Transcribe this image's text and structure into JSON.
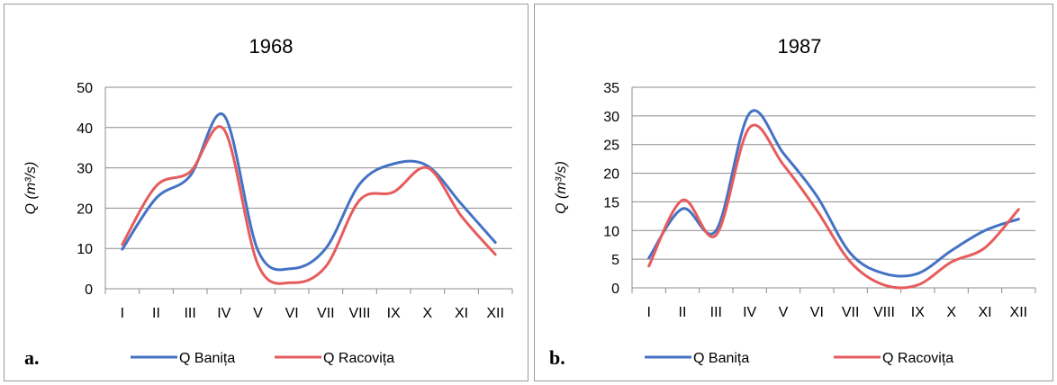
{
  "chart_data": [
    {
      "type": "line",
      "title": "1968",
      "panel_label": "a.",
      "ylabel": "Q (m³/s)",
      "xlabel": "",
      "categories": [
        "I",
        "II",
        "III",
        "IV",
        "V",
        "VI",
        "VII",
        "VIII",
        "IX",
        "X",
        "XI",
        "XII"
      ],
      "ylim": [
        0,
        50
      ],
      "yticks": [
        0,
        10,
        20,
        30,
        40,
        50
      ],
      "grid": true,
      "legend": "bottom",
      "series": [
        {
          "name": "Q Banița",
          "color": "#4472c4",
          "values": [
            9.8,
            22.5,
            28.0,
            43.0,
            9.5,
            5.0,
            10.0,
            26.0,
            31.0,
            30.5,
            21.0,
            11.5
          ]
        },
        {
          "name": "Q Racovița",
          "color": "#e65c5c",
          "values": [
            11.0,
            25.5,
            29.0,
            39.5,
            6.0,
            1.5,
            5.5,
            22.0,
            24.0,
            30.0,
            18.0,
            8.5
          ]
        }
      ]
    },
    {
      "type": "line",
      "title": "1987",
      "panel_label": "b.",
      "ylabel": "Q (m³/s)",
      "xlabel": "",
      "categories": [
        "I",
        "II",
        "III",
        "IV",
        "V",
        "VI",
        "VII",
        "VIII",
        "IX",
        "X",
        "XI",
        "XII"
      ],
      "ylim": [
        0,
        35
      ],
      "yticks": [
        0,
        5,
        10,
        15,
        20,
        25,
        30,
        35
      ],
      "grid": true,
      "legend": "bottom",
      "series": [
        {
          "name": "Q Banița",
          "color": "#4472c4",
          "values": [
            5.2,
            13.8,
            10.0,
            30.5,
            23.5,
            16.0,
            6.0,
            2.5,
            2.5,
            6.5,
            10.0,
            12.0
          ]
        },
        {
          "name": "Q Racovița",
          "color": "#e65c5c",
          "values": [
            3.8,
            15.3,
            9.2,
            28.0,
            21.5,
            13.5,
            4.5,
            0.5,
            0.5,
            4.5,
            7.0,
            13.7
          ]
        }
      ]
    }
  ]
}
